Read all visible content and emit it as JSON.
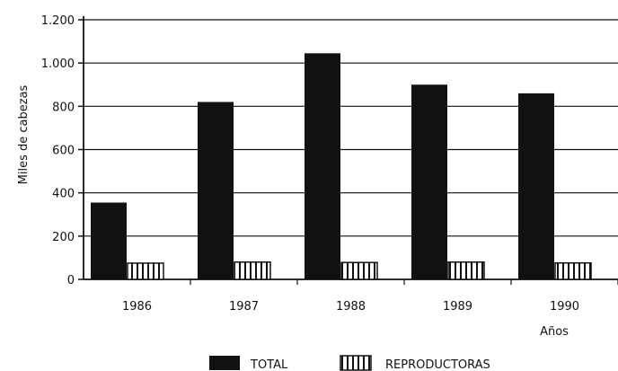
{
  "chart_data": {
    "type": "bar",
    "title": "",
    "ylabel": "Miles de cabezas",
    "xlabel": "Años",
    "categories": [
      "1986",
      "1987",
      "1988",
      "1989",
      "1990"
    ],
    "ylim": [
      0,
      1200
    ],
    "yticks": [
      0,
      200,
      400,
      600,
      800,
      1000,
      1200
    ],
    "ytick_labels": [
      "0",
      "200",
      "400",
      "600",
      "800",
      "1.000",
      "1.200"
    ],
    "grid": true,
    "legend_position": "bottom-center",
    "series": [
      {
        "name": "TOTAL",
        "values": [
          355,
          820,
          1045,
          900,
          860
        ],
        "style": "solid",
        "color": "#111111"
      },
      {
        "name": "REPRODUCTORAS",
        "values": [
          75,
          80,
          78,
          80,
          76
        ],
        "style": "vertical-hatch",
        "color": "#111111"
      }
    ]
  }
}
